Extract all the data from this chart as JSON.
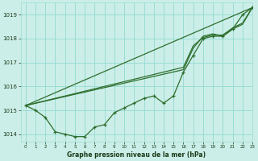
{
  "title": "Graphe pression niveau de la mer (hPa)",
  "background_color": "#cceee8",
  "grid_color": "#99ddd5",
  "line_color": "#2d6e2d",
  "text_color": "#1a3a1a",
  "xlim": [
    -0.5,
    23
  ],
  "ylim": [
    1013.7,
    1019.5
  ],
  "yticks": [
    1014,
    1015,
    1016,
    1017,
    1018,
    1019
  ],
  "xticks": [
    0,
    1,
    2,
    3,
    4,
    5,
    6,
    7,
    8,
    9,
    10,
    11,
    12,
    13,
    14,
    15,
    16,
    17,
    18,
    19,
    20,
    21,
    22,
    23
  ],
  "series1_x": [
    0,
    1,
    2,
    3,
    4,
    5,
    6,
    7,
    8,
    9,
    10,
    11,
    12,
    13,
    14,
    15,
    16,
    17,
    18,
    19,
    20,
    21,
    22,
    23
  ],
  "series1_y": [
    1015.2,
    1015.0,
    1014.7,
    1014.1,
    1014.0,
    1013.9,
    1013.9,
    1014.3,
    1014.4,
    1014.9,
    1015.1,
    1015.3,
    1015.5,
    1015.6,
    1015.3,
    1015.6,
    1016.6,
    1017.3,
    1018.0,
    1018.1,
    1018.1,
    1018.4,
    1019.0,
    1019.3
  ],
  "series2_x": [
    0,
    23
  ],
  "series2_y": [
    1015.2,
    1019.3
  ],
  "series3_x": [
    0,
    16,
    17,
    18,
    19,
    20,
    21,
    22,
    23
  ],
  "series3_y": [
    1015.2,
    1016.7,
    1017.6,
    1018.1,
    1018.2,
    1018.1,
    1018.4,
    1018.6,
    1019.3
  ],
  "series4_x": [
    0,
    16,
    17,
    18,
    19,
    20,
    21,
    22,
    23
  ],
  "series4_y": [
    1015.2,
    1016.8,
    1017.7,
    1018.05,
    1018.15,
    1018.15,
    1018.45,
    1018.65,
    1019.3
  ]
}
